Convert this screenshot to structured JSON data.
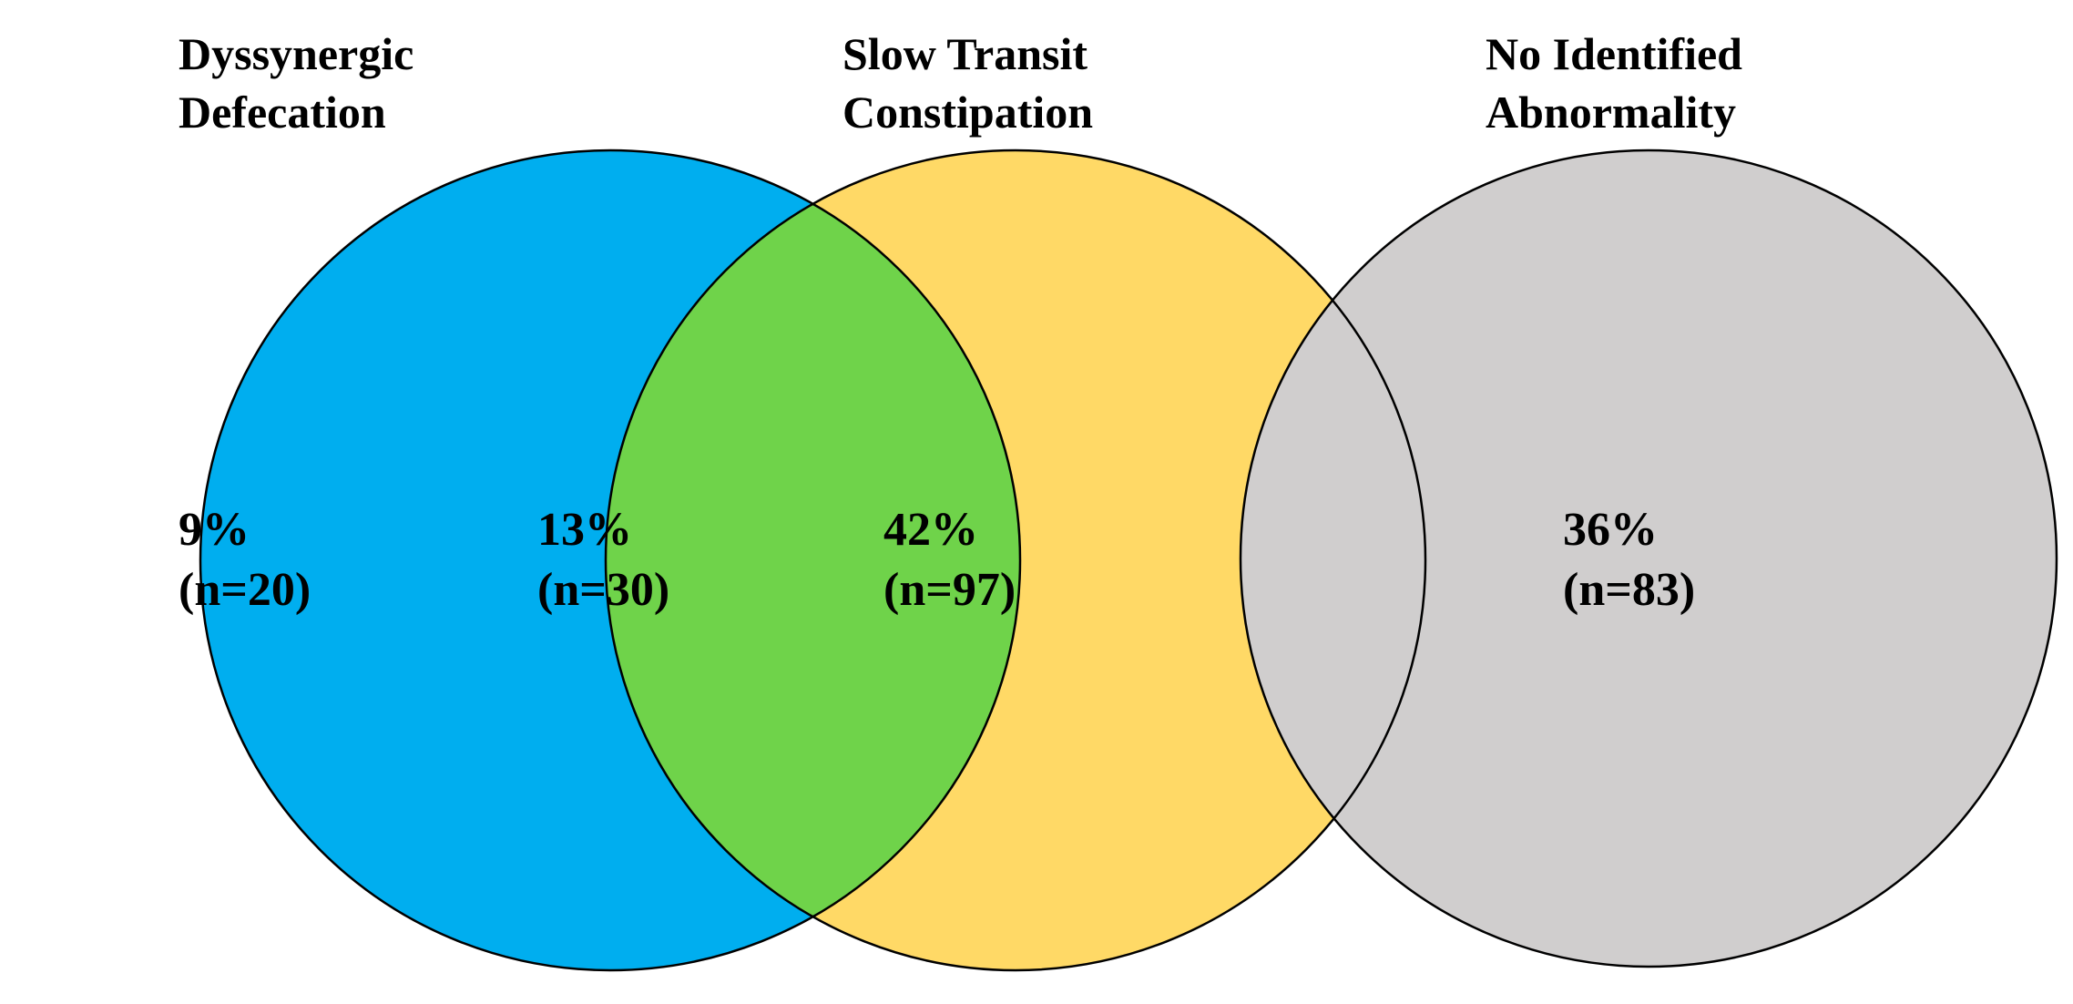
{
  "sets": {
    "dyssynergic": {
      "title_line1": "Dyssynergic",
      "title_line2": "Defecation",
      "color": "#00AEEF"
    },
    "slow_transit": {
      "title_line1": "Slow Transit",
      "title_line2": "Constipation",
      "color": "#FFD966"
    },
    "no_abnormality": {
      "title_line1": "No Identified",
      "title_line2": "Abnormality",
      "color": "#D0CECE"
    }
  },
  "regions": {
    "dyssynergic_only": {
      "percent": "9%",
      "count": "(n=20)"
    },
    "overlap": {
      "percent": "13%",
      "count": "(n=30)",
      "color": "#6FD34A"
    },
    "slow_transit_only": {
      "percent": "42%",
      "count": "(n=97)"
    },
    "no_abnormality": {
      "percent": "36%",
      "count": "(n=83)"
    }
  }
}
